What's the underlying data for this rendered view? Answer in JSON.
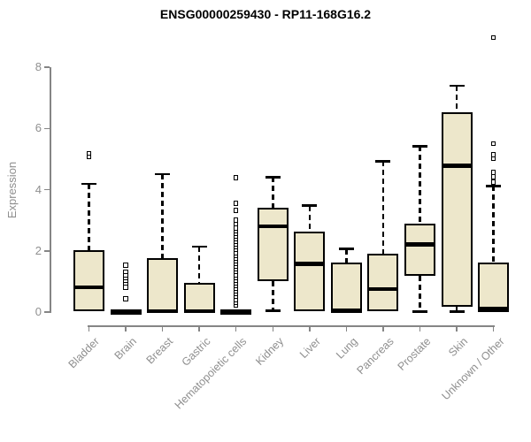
{
  "chart_data": {
    "type": "boxplot",
    "title": "ENSG00000259430 - RP11-168G16.2",
    "ylabel": "Expression",
    "xlabel": "",
    "yticks": [
      0,
      2,
      4,
      6,
      8
    ],
    "ylim": [
      0,
      9.2
    ],
    "grid": false,
    "box_fill_color": "#ede7cb",
    "axis_color": "#858585",
    "label_color": "#8f8f8f",
    "categories": [
      "Bladder",
      "Brain",
      "Breast",
      "Gastric",
      "Hematopoietic cells",
      "Kidney",
      "Liver",
      "Lung",
      "Pancreas",
      "Prostate",
      "Skin",
      "Unknown / Other"
    ],
    "series": [
      {
        "name": "Bladder",
        "whislo": 0.02,
        "q1": 0.02,
        "med": 0.81,
        "q3": 2.03,
        "whishi": 4.19,
        "outliers": [
          5.08,
          5.18
        ]
      },
      {
        "name": "Brain",
        "whislo": 0.0,
        "q1": 0.0,
        "med": 0.02,
        "q3": 0.06,
        "whishi": 0.08,
        "outliers": [
          0.43,
          0.81,
          0.95,
          1.03,
          1.12,
          1.22,
          1.32,
          1.53
        ]
      },
      {
        "name": "Breast",
        "whislo": 0.0,
        "q1": 0.0,
        "med": 0.03,
        "q3": 1.77,
        "whishi": 4.51,
        "outliers": []
      },
      {
        "name": "Gastric",
        "whislo": 0.0,
        "q1": 0.0,
        "med": 0.03,
        "q3": 0.96,
        "whishi": 2.14,
        "outliers": []
      },
      {
        "name": "Hematopoietic cells",
        "whislo": 0.0,
        "q1": 0.0,
        "med": 0.02,
        "q3": 0.04,
        "whishi": 0.06,
        "outliers": [
          0.23,
          0.32,
          0.41,
          0.5,
          0.59,
          0.68,
          0.77,
          0.86,
          0.95,
          1.04,
          1.13,
          1.22,
          1.31,
          1.4,
          1.49,
          1.58,
          1.67,
          1.76,
          1.85,
          1.94,
          2.03,
          2.12,
          2.21,
          2.3,
          2.39,
          2.48,
          2.57,
          2.66,
          2.75,
          2.88,
          3.0,
          3.32,
          3.55,
          4.39
        ]
      },
      {
        "name": "Kidney",
        "whislo": 0.05,
        "q1": 1.01,
        "med": 2.8,
        "q3": 3.42,
        "whishi": 4.41,
        "outliers": []
      },
      {
        "name": "Liver",
        "whislo": 0.02,
        "q1": 0.02,
        "med": 1.57,
        "q3": 2.64,
        "whishi": 3.48,
        "outliers": []
      },
      {
        "name": "Lung",
        "whislo": 0.0,
        "q1": 0.0,
        "med": 0.05,
        "q3": 1.62,
        "whishi": 2.06,
        "outliers": []
      },
      {
        "name": "Pancreas",
        "whislo": 0.02,
        "q1": 0.02,
        "med": 0.75,
        "q3": 1.91,
        "whishi": 4.93,
        "outliers": []
      },
      {
        "name": "Prostate",
        "whislo": 0.02,
        "q1": 1.19,
        "med": 2.2,
        "q3": 2.9,
        "whishi": 5.42,
        "outliers": []
      },
      {
        "name": "Skin",
        "whislo": 0.02,
        "q1": 0.16,
        "med": 4.78,
        "q3": 6.53,
        "whishi": 7.39,
        "outliers": []
      },
      {
        "name": "Unknown / Other",
        "whislo": 0.0,
        "q1": 0.0,
        "med": 0.09,
        "q3": 1.62,
        "whishi": 4.12,
        "outliers": [
          4.25,
          4.42,
          4.56,
          5.03,
          5.14,
          5.5,
          8.97
        ]
      }
    ]
  }
}
